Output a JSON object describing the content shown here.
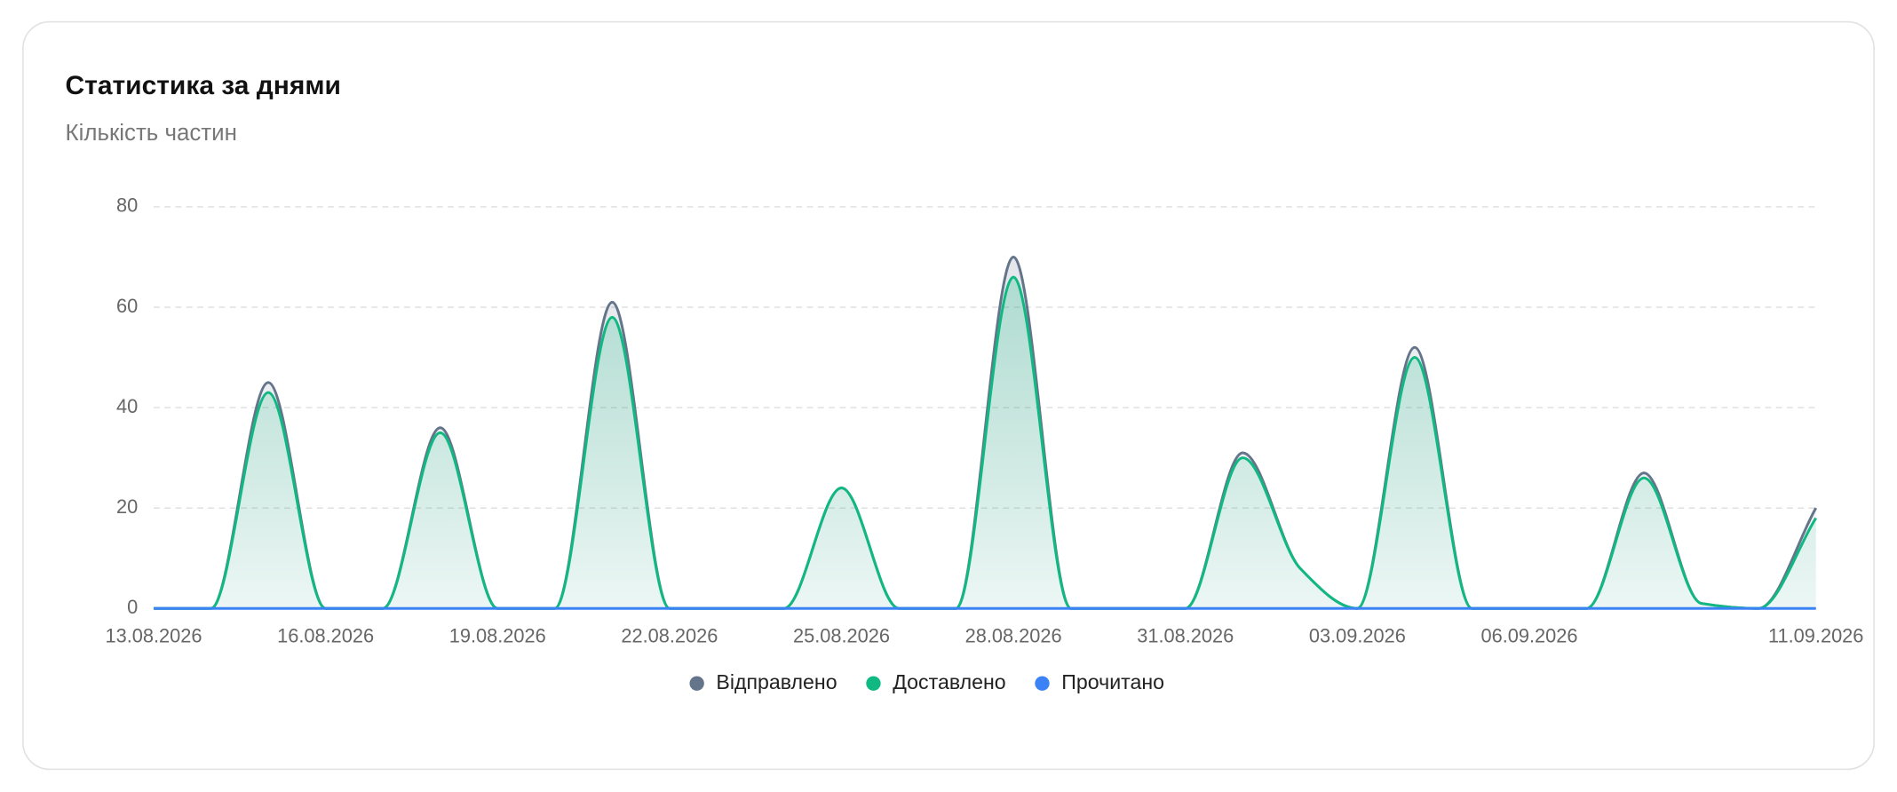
{
  "chart_data": {
    "type": "line",
    "title": "Статистика за днями",
    "subtitle": "Кількість частин",
    "categories": [
      "13.08.2026",
      null,
      null,
      "16.08.2026",
      null,
      null,
      "19.08.2026",
      null,
      null,
      "22.08.2026",
      null,
      null,
      "25.08.2026",
      null,
      null,
      "28.08.2026",
      null,
      null,
      "31.08.2026",
      null,
      null,
      "03.09.2026",
      null,
      null,
      "06.09.2026",
      null,
      null,
      null,
      null,
      "11.09.2026"
    ],
    "series": [
      {
        "name": "Відправлено",
        "color": "#64748b",
        "values": [
          0,
          0,
          45,
          0,
          0,
          36,
          0,
          0,
          61,
          0,
          0,
          0,
          24,
          0,
          0,
          70,
          0,
          0,
          0,
          31,
          8,
          0,
          52,
          0,
          0,
          0,
          27,
          1,
          0,
          20
        ]
      },
      {
        "name": "Доставлено",
        "color": "#10b981",
        "values": [
          0,
          0,
          43,
          0,
          0,
          35,
          0,
          0,
          58,
          0,
          0,
          0,
          24,
          0,
          0,
          66,
          0,
          0,
          0,
          30,
          8,
          0,
          50,
          0,
          0,
          0,
          26,
          1,
          0,
          18
        ]
      },
      {
        "name": "Прочитано",
        "color": "#3b82f6",
        "values": [
          0,
          0,
          0,
          0,
          0,
          0,
          0,
          0,
          0,
          0,
          0,
          0,
          0,
          0,
          0,
          0,
          0,
          0,
          0,
          0,
          0,
          0,
          0,
          0,
          0,
          0,
          0,
          0,
          0,
          0
        ]
      }
    ],
    "ylim": [
      0,
      80
    ],
    "yticks": [
      0,
      20,
      40,
      60,
      80
    ],
    "grid": true,
    "legend": "bottom"
  }
}
